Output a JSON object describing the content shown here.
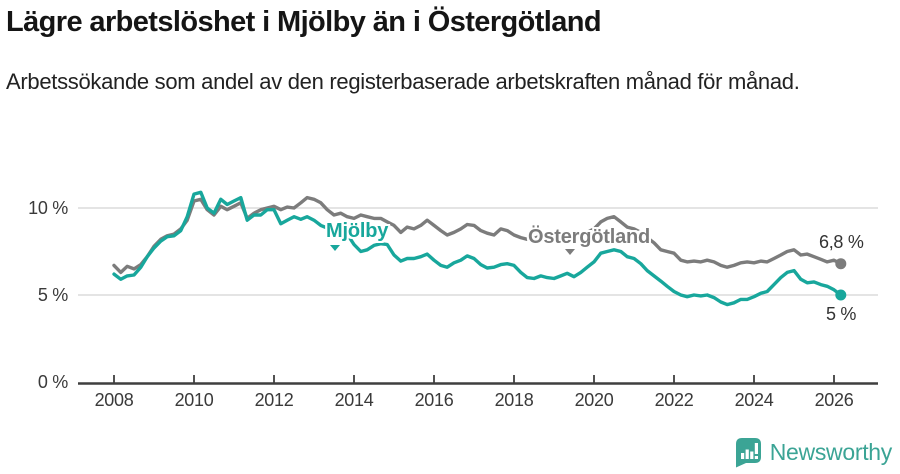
{
  "header": {
    "title": "Lägre arbetslöshet i Mjölby än i Östergötland",
    "subtitle": "Arbetssökande som andel av den registerbaserade arbetskraften månad för månad."
  },
  "chart_data": {
    "type": "line",
    "title": "Lägre arbetslöshet i Mjölby än i Östergötland",
    "xlabel": "",
    "ylabel": "Arbetssökande som andel av den registerbaserade arbetskraften",
    "unit": "%",
    "ylim": [
      0,
      11.6
    ],
    "xlim": [
      2007.0,
      2027.1
    ],
    "grid": "horizontal",
    "legend_position": "inline-labels",
    "x_ticks": [
      "2008",
      "2010",
      "2012",
      "2014",
      "2016",
      "2018",
      "2020",
      "2022",
      "2024",
      "2026"
    ],
    "x_tick_values": [
      2008,
      2010,
      2012,
      2014,
      2016,
      2018,
      2020,
      2022,
      2024,
      2026
    ],
    "y_tick_labels": [
      "10 %",
      "5 %",
      "0 %"
    ],
    "y_tick_values": [
      10,
      5,
      0
    ],
    "gridline_values": [
      10,
      5
    ],
    "colors": {
      "mjolby": "#18a79c",
      "ostergotland": "#7c7c7c",
      "gridline": "#dcdcdc",
      "axis": "#3f3f3f",
      "tick_text": "#3a3a3a"
    },
    "x": [
      2008,
      2008.17,
      2008.33,
      2008.5,
      2008.67,
      2008.83,
      2009,
      2009.17,
      2009.33,
      2009.5,
      2009.67,
      2009.83,
      2010,
      2010.17,
      2010.33,
      2010.5,
      2010.67,
      2010.83,
      2011,
      2011.17,
      2011.33,
      2011.5,
      2011.67,
      2011.83,
      2012,
      2012.17,
      2012.33,
      2012.5,
      2012.67,
      2012.83,
      2013,
      2013.17,
      2013.33,
      2013.5,
      2013.67,
      2013.83,
      2014,
      2014.17,
      2014.33,
      2014.5,
      2014.67,
      2014.83,
      2015,
      2015.17,
      2015.33,
      2015.5,
      2015.67,
      2015.83,
      2016,
      2016.17,
      2016.33,
      2016.5,
      2016.67,
      2016.83,
      2017,
      2017.17,
      2017.33,
      2017.5,
      2017.67,
      2017.83,
      2018,
      2018.17,
      2018.33,
      2018.5,
      2018.67,
      2018.83,
      2019,
      2019.17,
      2019.33,
      2019.5,
      2019.67,
      2019.83,
      2020,
      2020.17,
      2020.33,
      2020.5,
      2020.67,
      2020.83,
      2021,
      2021.17,
      2021.33,
      2021.5,
      2021.67,
      2021.83,
      2022,
      2022.17,
      2022.33,
      2022.5,
      2022.67,
      2022.83,
      2023,
      2023.17,
      2023.33,
      2023.5,
      2023.67,
      2023.83,
      2024,
      2024.17,
      2024.33,
      2024.5,
      2024.67,
      2024.83,
      2025,
      2025.17,
      2025.33,
      2025.5,
      2025.67,
      2025.83,
      2026,
      2026.17
    ],
    "series": [
      {
        "name": "Mjölby",
        "color": "#18a79c",
        "end_label": "5 %",
        "end_value": 5.0,
        "values": [
          6.2,
          5.9,
          6.1,
          6.15,
          6.6,
          7.2,
          7.7,
          8.1,
          8.35,
          8.4,
          8.7,
          9.5,
          10.8,
          10.9,
          10.0,
          9.7,
          10.5,
          10.2,
          10.4,
          10.6,
          9.3,
          9.6,
          9.6,
          9.9,
          9.9,
          9.1,
          9.3,
          9.5,
          9.35,
          9.5,
          9.3,
          9.0,
          8.85,
          8.75,
          8.65,
          8.5,
          7.9,
          7.5,
          7.6,
          7.85,
          7.95,
          7.9,
          7.3,
          6.95,
          7.1,
          7.1,
          7.2,
          7.35,
          7.0,
          6.7,
          6.6,
          6.85,
          7.0,
          7.25,
          7.1,
          6.75,
          6.55,
          6.6,
          6.75,
          6.8,
          6.7,
          6.3,
          6.0,
          5.95,
          6.1,
          6.0,
          5.95,
          6.1,
          6.25,
          6.05,
          6.3,
          6.6,
          6.9,
          7.4,
          7.5,
          7.6,
          7.5,
          7.2,
          7.1,
          6.8,
          6.4,
          6.1,
          5.8,
          5.5,
          5.2,
          5.0,
          4.9,
          5.0,
          4.95,
          5.0,
          4.85,
          4.6,
          4.45,
          4.55,
          4.75,
          4.75,
          4.9,
          5.1,
          5.2,
          5.6,
          6.0,
          6.3,
          6.4,
          5.9,
          5.7,
          5.75,
          5.6,
          5.5,
          5.3,
          5.0
        ]
      },
      {
        "name": "Östergötland",
        "color": "#7c7c7c",
        "end_label": "6,8 %",
        "end_value": 6.8,
        "values": [
          6.7,
          6.3,
          6.65,
          6.5,
          6.75,
          7.2,
          7.8,
          8.2,
          8.4,
          8.5,
          8.8,
          9.3,
          10.4,
          10.5,
          9.9,
          9.6,
          10.1,
          9.9,
          10.1,
          10.3,
          9.4,
          9.7,
          9.9,
          10.0,
          10.1,
          9.9,
          10.05,
          10.0,
          10.3,
          10.6,
          10.5,
          10.3,
          9.9,
          9.6,
          9.7,
          9.5,
          9.4,
          9.6,
          9.5,
          9.4,
          9.4,
          9.2,
          9.0,
          8.6,
          8.9,
          8.8,
          9.0,
          9.3,
          9.0,
          8.7,
          8.45,
          8.6,
          8.8,
          9.05,
          9.0,
          8.7,
          8.55,
          8.45,
          8.8,
          8.7,
          8.45,
          8.3,
          8.2,
          8.25,
          8.4,
          8.3,
          8.2,
          8.3,
          8.4,
          8.3,
          8.5,
          8.6,
          8.8,
          9.2,
          9.4,
          9.5,
          9.2,
          8.9,
          8.8,
          8.6,
          8.3,
          8.0,
          7.6,
          7.5,
          7.4,
          7.0,
          6.9,
          6.95,
          6.9,
          7.0,
          6.9,
          6.7,
          6.6,
          6.7,
          6.85,
          6.9,
          6.85,
          6.95,
          6.9,
          7.1,
          7.3,
          7.5,
          7.6,
          7.3,
          7.35,
          7.2,
          7.05,
          6.9,
          7.0,
          6.8
        ]
      }
    ]
  },
  "branding": {
    "logo_text": "Newsworthy",
    "logo_icon": "newsworthy-chart-bubble-icon",
    "logo_color": "#3ba495"
  }
}
